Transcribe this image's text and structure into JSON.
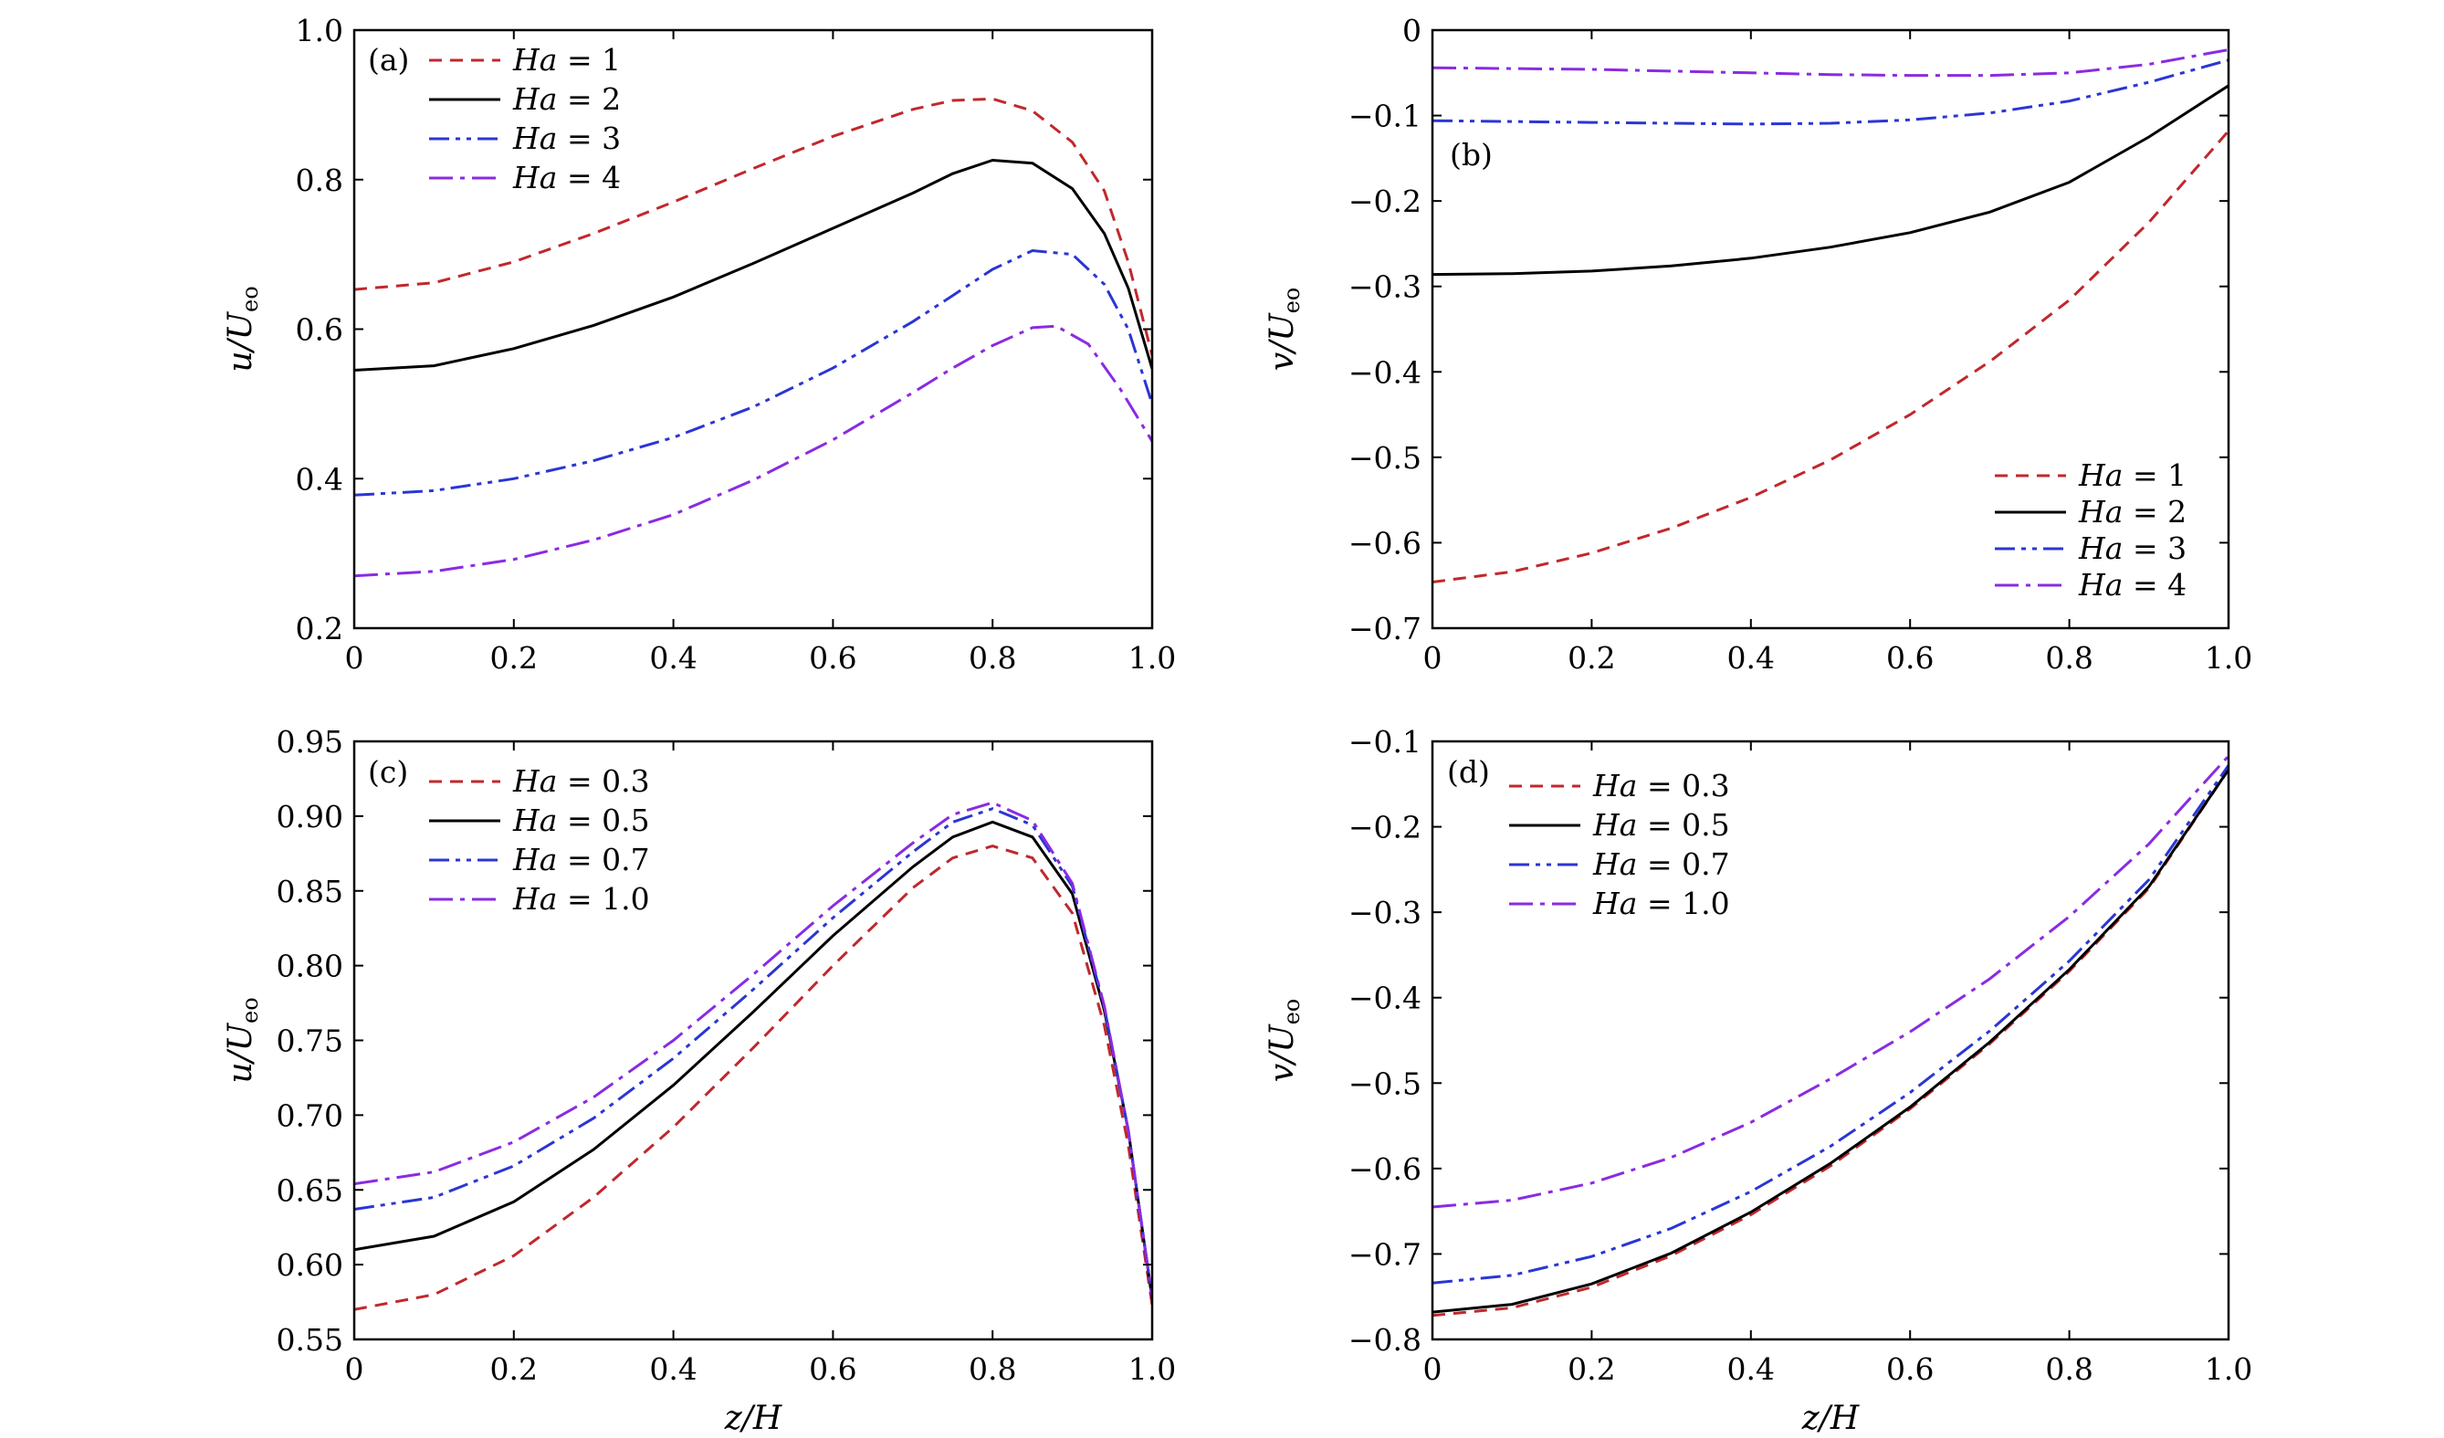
{
  "figure": {
    "xlabel": "z/H"
  },
  "chart_data": [
    {
      "panel": "(a)",
      "type": "line",
      "ylabel": {
        "main": "u/U",
        "sub": "eo"
      },
      "xlabel": "",
      "xlim": [
        0,
        1
      ],
      "ylim": [
        0.2,
        1.0
      ],
      "xticks": [
        0,
        0.2,
        0.4,
        0.6,
        0.8,
        1.0
      ],
      "xtick_labels": [
        "0",
        "0.2",
        "0.4",
        "0.6",
        "0.8",
        "1.0"
      ],
      "yticks": [
        0.2,
        0.4,
        0.6,
        0.8,
        1.0
      ],
      "ytick_labels": [
        "0.2",
        "0.4",
        "0.6",
        "0.8",
        "1.0"
      ],
      "legend_position": "top-left",
      "series": [
        {
          "name": "Ha = 1",
          "legend": [
            "Ha",
            " = 1"
          ],
          "color": "#c0282c",
          "style": "dashed",
          "x": [
            0,
            0.1,
            0.2,
            0.3,
            0.4,
            0.5,
            0.6,
            0.7,
            0.75,
            0.8,
            0.85,
            0.9,
            0.94,
            0.97,
            1.0
          ],
          "y": [
            0.653,
            0.662,
            0.69,
            0.728,
            0.77,
            0.815,
            0.858,
            0.894,
            0.906,
            0.908,
            0.892,
            0.85,
            0.785,
            0.69,
            0.565
          ]
        },
        {
          "name": "Ha = 2",
          "legend": [
            "Ha",
            " = 2"
          ],
          "color": "#000000",
          "style": "solid",
          "x": [
            0,
            0.1,
            0.2,
            0.3,
            0.4,
            0.5,
            0.6,
            0.7,
            0.75,
            0.8,
            0.85,
            0.9,
            0.94,
            0.97,
            1.0
          ],
          "y": [
            0.545,
            0.551,
            0.574,
            0.605,
            0.643,
            0.688,
            0.735,
            0.782,
            0.808,
            0.826,
            0.822,
            0.788,
            0.728,
            0.655,
            0.547
          ]
        },
        {
          "name": "Ha = 3",
          "legend": [
            "Ha",
            " = 3"
          ],
          "color": "#2a36d4",
          "style": "dashdotdot",
          "x": [
            0,
            0.1,
            0.2,
            0.3,
            0.4,
            0.5,
            0.6,
            0.7,
            0.75,
            0.8,
            0.85,
            0.9,
            0.94,
            0.97,
            1.0
          ],
          "y": [
            0.378,
            0.384,
            0.4,
            0.424,
            0.455,
            0.496,
            0.548,
            0.61,
            0.645,
            0.68,
            0.705,
            0.7,
            0.66,
            0.6,
            0.5
          ]
        },
        {
          "name": "Ha = 4",
          "legend": [
            "Ha",
            " = 4"
          ],
          "color": "#8a2be2",
          "style": "dashdot",
          "x": [
            0,
            0.1,
            0.2,
            0.3,
            0.4,
            0.5,
            0.6,
            0.7,
            0.75,
            0.8,
            0.85,
            0.88,
            0.92,
            0.96,
            1.0
          ],
          "y": [
            0.27,
            0.276,
            0.292,
            0.318,
            0.352,
            0.398,
            0.452,
            0.515,
            0.548,
            0.578,
            0.602,
            0.604,
            0.58,
            0.52,
            0.45
          ]
        }
      ]
    },
    {
      "panel": "(b)",
      "type": "line",
      "ylabel": {
        "main": "v/U",
        "sub": "eo"
      },
      "xlabel": "",
      "xlim": [
        0,
        1
      ],
      "ylim": [
        -0.7,
        0
      ],
      "xticks": [
        0,
        0.2,
        0.4,
        0.6,
        0.8,
        1.0
      ],
      "xtick_labels": [
        "0",
        "0.2",
        "0.4",
        "0.6",
        "0.8",
        "1.0"
      ],
      "yticks": [
        0,
        -0.1,
        -0.2,
        -0.3,
        -0.4,
        -0.5,
        -0.6,
        -0.7
      ],
      "ytick_labels": [
        "0",
        "−0.1",
        "−0.2",
        "−0.3",
        "−0.4",
        "−0.5",
        "−0.6",
        "−0.7"
      ],
      "legend_position": "bottom-right",
      "series": [
        {
          "name": "Ha = 1",
          "legend": [
            "Ha",
            " = 1"
          ],
          "color": "#c0282c",
          "style": "dashed",
          "x": [
            0,
            0.1,
            0.2,
            0.3,
            0.4,
            0.5,
            0.6,
            0.7,
            0.8,
            0.9,
            1.0
          ],
          "y": [
            -0.646,
            -0.634,
            -0.612,
            -0.583,
            -0.547,
            -0.503,
            -0.45,
            -0.388,
            -0.316,
            -0.225,
            -0.118
          ]
        },
        {
          "name": "Ha = 2",
          "legend": [
            "Ha",
            " = 2"
          ],
          "color": "#000000",
          "style": "solid",
          "x": [
            0,
            0.1,
            0.2,
            0.3,
            0.4,
            0.5,
            0.6,
            0.7,
            0.8,
            0.9,
            1.0
          ],
          "y": [
            -0.286,
            -0.285,
            -0.282,
            -0.276,
            -0.267,
            -0.254,
            -0.237,
            -0.213,
            -0.178,
            -0.125,
            -0.065
          ]
        },
        {
          "name": "Ha = 3",
          "legend": [
            "Ha",
            " = 3"
          ],
          "color": "#2a36d4",
          "style": "dashdotdot",
          "x": [
            0,
            0.1,
            0.2,
            0.3,
            0.4,
            0.5,
            0.6,
            0.7,
            0.8,
            0.9,
            1.0
          ],
          "y": [
            -0.106,
            -0.107,
            -0.108,
            -0.109,
            -0.11,
            -0.109,
            -0.105,
            -0.097,
            -0.083,
            -0.061,
            -0.035
          ]
        },
        {
          "name": "Ha = 4",
          "legend": [
            "Ha",
            " = 4"
          ],
          "color": "#8a2be2",
          "style": "dashdot",
          "x": [
            0,
            0.1,
            0.2,
            0.3,
            0.4,
            0.5,
            0.6,
            0.7,
            0.8,
            0.9,
            1.0
          ],
          "y": [
            -0.044,
            -0.045,
            -0.046,
            -0.048,
            -0.05,
            -0.052,
            -0.053,
            -0.053,
            -0.05,
            -0.04,
            -0.023
          ]
        }
      ]
    },
    {
      "panel": "(c)",
      "type": "line",
      "ylabel": {
        "main": "u/U",
        "sub": "eo"
      },
      "xlabel": "z/H",
      "xlim": [
        0,
        1
      ],
      "ylim": [
        0.55,
        0.95
      ],
      "xticks": [
        0,
        0.2,
        0.4,
        0.6,
        0.8,
        1.0
      ],
      "xtick_labels": [
        "0",
        "0.2",
        "0.4",
        "0.6",
        "0.8",
        "1.0"
      ],
      "yticks": [
        0.55,
        0.6,
        0.65,
        0.7,
        0.75,
        0.8,
        0.85,
        0.9,
        0.95
      ],
      "ytick_labels": [
        "0.55",
        "0.60",
        "0.65",
        "0.70",
        "0.75",
        "0.80",
        "0.85",
        "0.90",
        "0.95"
      ],
      "legend_position": "top-left",
      "series": [
        {
          "name": "Ha = 0.3",
          "legend": [
            "Ha",
            " = 0.3"
          ],
          "color": "#c0282c",
          "style": "dashed",
          "x": [
            0,
            0.1,
            0.2,
            0.3,
            0.4,
            0.5,
            0.6,
            0.7,
            0.75,
            0.8,
            0.85,
            0.9,
            0.94,
            0.97,
            1.0
          ],
          "y": [
            0.57,
            0.58,
            0.606,
            0.645,
            0.692,
            0.745,
            0.8,
            0.852,
            0.872,
            0.88,
            0.872,
            0.835,
            0.76,
            0.68,
            0.573
          ]
        },
        {
          "name": "Ha = 0.5",
          "legend": [
            "Ha",
            " = 0.5"
          ],
          "color": "#000000",
          "style": "solid",
          "x": [
            0,
            0.1,
            0.2,
            0.3,
            0.4,
            0.5,
            0.6,
            0.7,
            0.75,
            0.8,
            0.85,
            0.9,
            0.94,
            0.97,
            1.0
          ],
          "y": [
            0.61,
            0.619,
            0.642,
            0.677,
            0.72,
            0.769,
            0.82,
            0.866,
            0.886,
            0.896,
            0.886,
            0.848,
            0.77,
            0.69,
            0.577
          ]
        },
        {
          "name": "Ha = 0.7",
          "legend": [
            "Ha",
            " = 0.7"
          ],
          "color": "#2a36d4",
          "style": "dashdotdot",
          "x": [
            0,
            0.1,
            0.2,
            0.3,
            0.4,
            0.5,
            0.6,
            0.7,
            0.75,
            0.8,
            0.85,
            0.9,
            0.94,
            0.97,
            1.0
          ],
          "y": [
            0.637,
            0.645,
            0.666,
            0.698,
            0.738,
            0.784,
            0.832,
            0.876,
            0.896,
            0.905,
            0.894,
            0.853,
            0.772,
            0.69,
            0.578
          ]
        },
        {
          "name": "Ha = 1.0",
          "legend": [
            "Ha",
            " = 1.0"
          ],
          "color": "#8a2be2",
          "style": "dashdot",
          "x": [
            0,
            0.1,
            0.2,
            0.3,
            0.4,
            0.5,
            0.6,
            0.7,
            0.75,
            0.8,
            0.85,
            0.9,
            0.94,
            0.97,
            1.0
          ],
          "y": [
            0.654,
            0.662,
            0.682,
            0.712,
            0.75,
            0.794,
            0.84,
            0.882,
            0.901,
            0.909,
            0.897,
            0.855,
            0.773,
            0.69,
            0.578
          ]
        }
      ]
    },
    {
      "panel": "(d)",
      "type": "line",
      "ylabel": {
        "main": "v/U",
        "sub": "eo"
      },
      "xlabel": "z/H",
      "xlim": [
        0,
        1
      ],
      "ylim": [
        -0.8,
        -0.1
      ],
      "xticks": [
        0,
        0.2,
        0.4,
        0.6,
        0.8,
        1.0
      ],
      "xtick_labels": [
        "0",
        "0.2",
        "0.4",
        "0.6",
        "0.8",
        "1.0"
      ],
      "yticks": [
        -0.1,
        -0.2,
        -0.3,
        -0.4,
        -0.5,
        -0.6,
        -0.7,
        -0.8
      ],
      "ytick_labels": [
        "−0.1",
        "−0.2",
        "−0.3",
        "−0.4",
        "−0.5",
        "−0.6",
        "−0.7",
        "−0.8"
      ],
      "legend_position": "top-left",
      "series": [
        {
          "name": "Ha = 0.3",
          "legend": [
            "Ha",
            " = 0.3"
          ],
          "color": "#c0282c",
          "style": "dashed",
          "x": [
            0,
            0.1,
            0.2,
            0.3,
            0.4,
            0.5,
            0.6,
            0.7,
            0.8,
            0.9,
            1.0
          ],
          "y": [
            -0.772,
            -0.763,
            -0.739,
            -0.702,
            -0.654,
            -0.597,
            -0.53,
            -0.454,
            -0.369,
            -0.272,
            -0.133
          ]
        },
        {
          "name": "Ha = 0.5",
          "legend": [
            "Ha",
            " = 0.5"
          ],
          "color": "#000000",
          "style": "solid",
          "x": [
            0,
            0.1,
            0.2,
            0.3,
            0.4,
            0.5,
            0.6,
            0.7,
            0.8,
            0.9,
            1.0
          ],
          "y": [
            -0.768,
            -0.759,
            -0.735,
            -0.699,
            -0.651,
            -0.594,
            -0.528,
            -0.452,
            -0.367,
            -0.27,
            -0.133
          ]
        },
        {
          "name": "Ha = 0.7",
          "legend": [
            "Ha",
            " = 0.7"
          ],
          "color": "#2a36d4",
          "style": "dashdotdot",
          "x": [
            0,
            0.1,
            0.2,
            0.3,
            0.4,
            0.5,
            0.6,
            0.7,
            0.8,
            0.9,
            1.0
          ],
          "y": [
            -0.734,
            -0.725,
            -0.703,
            -0.67,
            -0.627,
            -0.574,
            -0.511,
            -0.439,
            -0.357,
            -0.262,
            -0.128
          ]
        },
        {
          "name": "Ha = 1.0",
          "legend": [
            "Ha",
            " = 1.0"
          ],
          "color": "#8a2be2",
          "style": "dashdot",
          "x": [
            0,
            0.1,
            0.2,
            0.3,
            0.4,
            0.5,
            0.6,
            0.7,
            0.8,
            0.9,
            1.0
          ],
          "y": [
            -0.645,
            -0.637,
            -0.617,
            -0.587,
            -0.546,
            -0.495,
            -0.44,
            -0.378,
            -0.305,
            -0.22,
            -0.117
          ]
        }
      ]
    }
  ]
}
